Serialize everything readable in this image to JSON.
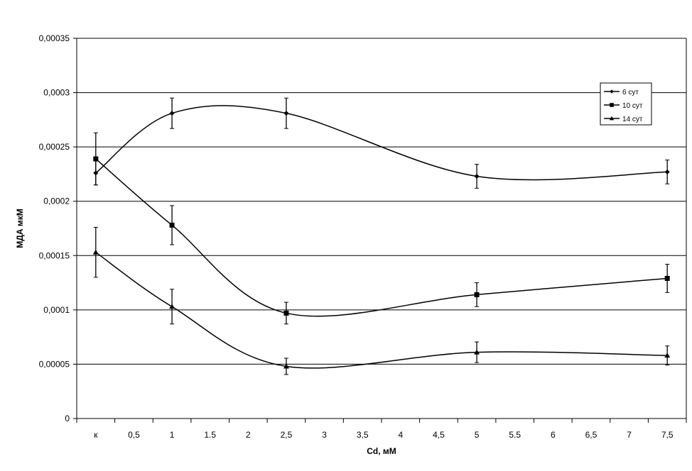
{
  "chart_data": {
    "type": "line",
    "title": "",
    "xlabel": "Cd, мМ",
    "ylabel": "МДА мкМ",
    "categories": [
      "к",
      "0,5",
      "1",
      "1.5",
      "2",
      "2,5",
      "3",
      "3,5",
      "4",
      "4,5",
      "5",
      "5.5",
      "6",
      "6,5",
      "7",
      "7,5"
    ],
    "yticks": [
      "0",
      "0,00005",
      "0,0001",
      "0,00015",
      "0,0002",
      "0,00025",
      "0,0003",
      "0,00035"
    ],
    "ylim": [
      0,
      0.00035
    ],
    "ystep": 5e-05,
    "grid": "horizontal",
    "smoothed": true,
    "legend_position": "top-right",
    "color": "#000000",
    "series": [
      {
        "name": "6 сут",
        "marker": "diamond",
        "points": [
          {
            "x": "к",
            "y": 0.000226,
            "err": 1.1e-05
          },
          {
            "x": "1",
            "y": 0.000281,
            "err": 1.4e-05
          },
          {
            "x": "2,5",
            "y": 0.000281,
            "err": 1.4e-05
          },
          {
            "x": "5",
            "y": 0.000223,
            "err": 1.1e-05
          },
          {
            "x": "7,5",
            "y": 0.000227,
            "err": 1.1e-05
          }
        ]
      },
      {
        "name": "10 сут",
        "marker": "square",
        "points": [
          {
            "x": "к",
            "y": 0.000239,
            "err": 2.4e-05
          },
          {
            "x": "1",
            "y": 0.000178,
            "err": 1.8e-05
          },
          {
            "x": "2,5",
            "y": 9.7e-05,
            "err": 1e-05
          },
          {
            "x": "5",
            "y": 0.000114,
            "err": 1.1e-05
          },
          {
            "x": "7,5",
            "y": 0.000129,
            "err": 1.3e-05
          }
        ]
      },
      {
        "name": "14 сут",
        "marker": "triangle",
        "points": [
          {
            "x": "к",
            "y": 0.000153,
            "err": 2.3e-05
          },
          {
            "x": "1",
            "y": 0.000103,
            "err": 1.6e-05
          },
          {
            "x": "2,5",
            "y": 4.8e-05,
            "err": 7.5e-06
          },
          {
            "x": "5",
            "y": 6.1e-05,
            "err": 9.5e-06
          },
          {
            "x": "7,5",
            "y": 5.8e-05,
            "err": 8.8e-06
          }
        ]
      }
    ]
  }
}
